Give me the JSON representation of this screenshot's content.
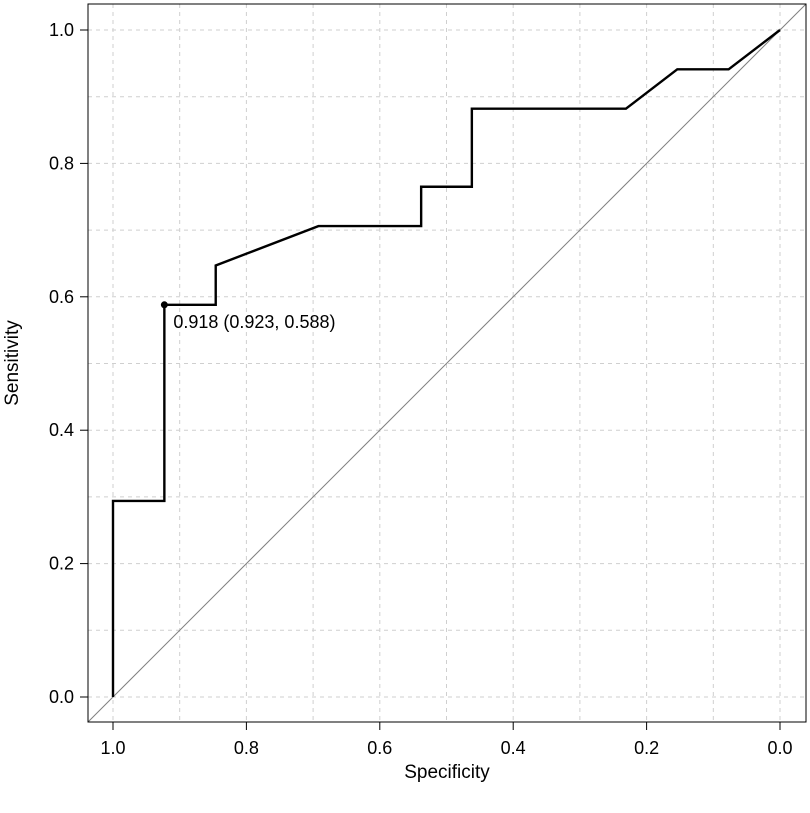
{
  "chart_data": {
    "type": "line",
    "title": "",
    "xlabel": "Specificity",
    "ylabel": "Sensitivity",
    "x_reversed": true,
    "xlim": [
      1.0,
      0.0
    ],
    "ylim": [
      0.0,
      1.0
    ],
    "x_ticks": [
      "1.0",
      "0.8",
      "0.6",
      "0.4",
      "0.2",
      "0.0"
    ],
    "y_ticks": [
      "0.0",
      "0.2",
      "0.4",
      "0.6",
      "0.8",
      "1.0"
    ],
    "grid": true,
    "legend": "none",
    "series": [
      {
        "values": [
          {
            "specificity": 1.0,
            "sensitivity": 0.0
          },
          {
            "specificity": 1.0,
            "sensitivity": 0.294
          },
          {
            "specificity": 0.923,
            "sensitivity": 0.294
          },
          {
            "specificity": 0.923,
            "sensitivity": 0.588
          },
          {
            "specificity": 0.846,
            "sensitivity": 0.588
          },
          {
            "specificity": 0.846,
            "sensitivity": 0.647
          },
          {
            "specificity": 0.692,
            "sensitivity": 0.706
          },
          {
            "specificity": 0.538,
            "sensitivity": 0.706
          },
          {
            "specificity": 0.538,
            "sensitivity": 0.765
          },
          {
            "specificity": 0.462,
            "sensitivity": 0.765
          },
          {
            "specificity": 0.462,
            "sensitivity": 0.882
          },
          {
            "specificity": 0.231,
            "sensitivity": 0.882
          },
          {
            "specificity": 0.154,
            "sensitivity": 0.941
          },
          {
            "specificity": 0.077,
            "sensitivity": 0.941
          },
          {
            "specificity": 0.0,
            "sensitivity": 1.0
          }
        ]
      }
    ],
    "reference_line": {
      "from": [
        1.0,
        0.0
      ],
      "to": [
        0.0,
        1.0
      ]
    },
    "annotation": {
      "text": "0.918 (0.923, 0.588)",
      "specificity": 0.923,
      "sensitivity": 0.588
    },
    "colors": {
      "curve": "#000000",
      "reference": "#808080",
      "grid": "#cfcfcf",
      "frame": "#000000"
    }
  }
}
